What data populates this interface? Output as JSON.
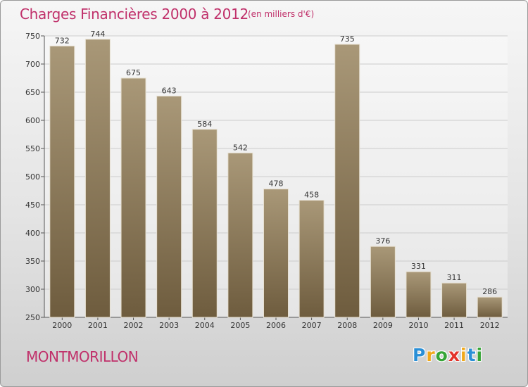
{
  "title": "Charges Financières 2000 à 2012",
  "subtitle": "(en milliers d'€)",
  "city": "MONTMORILLON",
  "logo": {
    "text": "Proxiti",
    "letters": [
      "P",
      "r",
      "o",
      "x",
      "i",
      "t",
      "i"
    ],
    "colors": [
      "#2a8fd6",
      "#f0a81a",
      "#36a537",
      "#e3332a",
      "#f0a81a",
      "#2a8fd6",
      "#36a537"
    ]
  },
  "colors": {
    "title": "#c0306a",
    "bar_top": "#a99878",
    "bar_bottom": "#6e5c3e",
    "grid": "#cccccc"
  },
  "chart_data": {
    "type": "bar",
    "categories": [
      "2000",
      "2001",
      "2002",
      "2003",
      "2004",
      "2005",
      "2006",
      "2007",
      "2008",
      "2009",
      "2010",
      "2011",
      "2012"
    ],
    "values": [
      732,
      744,
      675,
      643,
      584,
      542,
      478,
      458,
      735,
      376,
      331,
      311,
      286
    ],
    "title": "Charges Financières 2000 à 2012",
    "subtitle": "(en milliers d'€)",
    "ylim": [
      250,
      750
    ],
    "yticks": [
      250,
      300,
      350,
      400,
      450,
      500,
      550,
      600,
      650,
      700,
      750
    ],
    "grid": true,
    "data_labels": true
  }
}
